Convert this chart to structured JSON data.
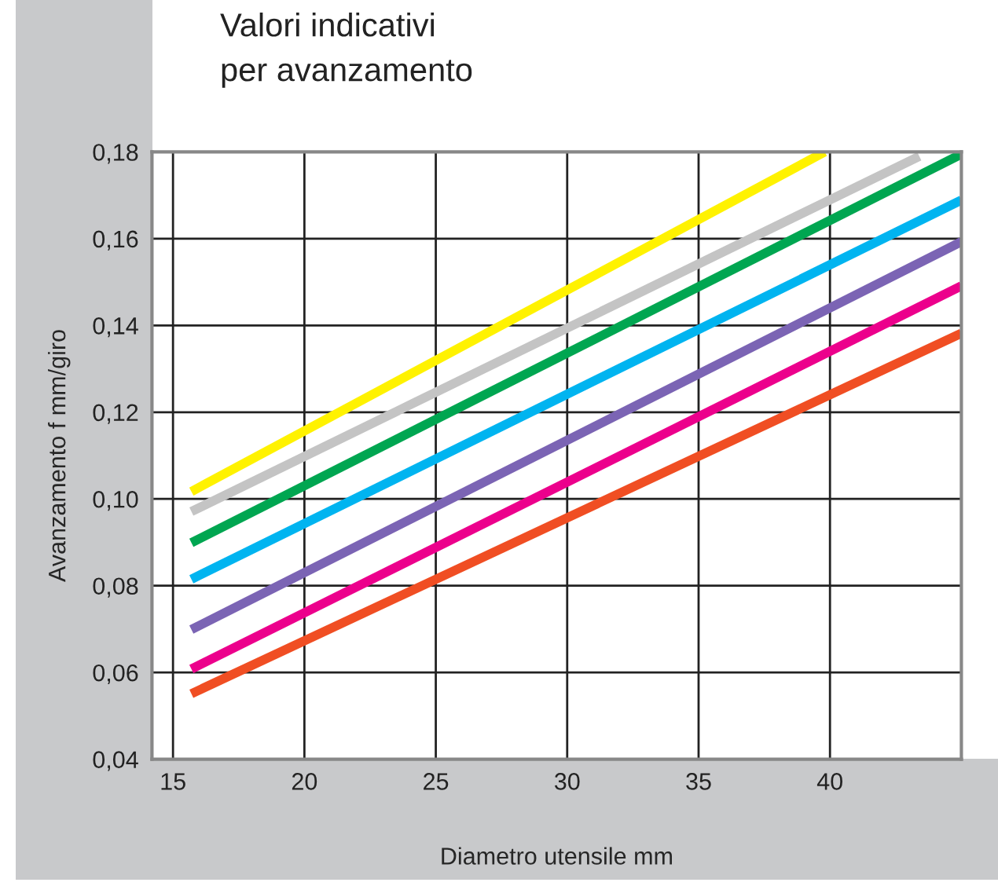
{
  "chart_data": {
    "type": "line",
    "title": "Valori indicativi\nper avanzamento",
    "xlabel": "Diametro utensile mm",
    "ylabel": "Avanzamento f mm/giro",
    "series": [
      {
        "color": "#fff200",
        "x": [
          15.7,
          39.8
        ],
        "values": [
          0.1017,
          0.18
        ]
      },
      {
        "color": "#c4c4c4",
        "x": [
          15.7,
          43.4
        ],
        "values": [
          0.0971,
          0.179
        ]
      },
      {
        "color": "#00a651",
        "x": [
          15.7,
          45.0
        ],
        "values": [
          0.0899,
          0.1795
        ]
      },
      {
        "color": "#00b4f0",
        "x": [
          15.7,
          45.0
        ],
        "values": [
          0.0815,
          0.1689
        ]
      },
      {
        "color": "#7b64b4",
        "x": [
          15.7,
          45.0
        ],
        "values": [
          0.0699,
          0.1593
        ]
      },
      {
        "color": "#ec008c",
        "x": [
          15.7,
          45.0
        ],
        "values": [
          0.0608,
          0.1491
        ]
      },
      {
        "color": "#f04e23",
        "x": [
          15.7,
          45.0
        ],
        "values": [
          0.0551,
          0.1382
        ]
      }
    ],
    "xlim": [
      14.2,
      45.0
    ],
    "ylim": [
      0.04,
      0.18
    ],
    "xticks": [
      15,
      20,
      25,
      30,
      35,
      40
    ],
    "yticks": [
      {
        "value": 0.04,
        "label": "0,04"
      },
      {
        "value": 0.06,
        "label": "0,06"
      },
      {
        "value": 0.08,
        "label": "0,08"
      },
      {
        "value": 0.1,
        "label": "0,10"
      },
      {
        "value": 0.12,
        "label": "0,12"
      },
      {
        "value": 0.14,
        "label": "0,14"
      },
      {
        "value": 0.16,
        "label": "0,16"
      },
      {
        "value": 0.18,
        "label": "0,18"
      }
    ],
    "grid": true,
    "marker": "none",
    "line_style": "solid"
  }
}
